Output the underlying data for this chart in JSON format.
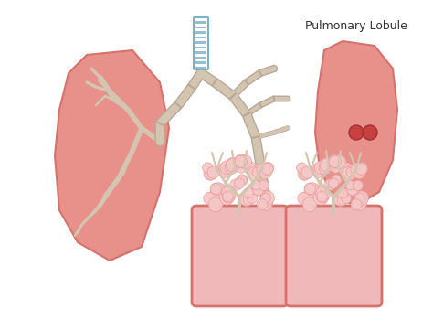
{
  "title": "Pulmonary Lobule",
  "bg_color": "#ffffff",
  "lung_color": "#e8908a",
  "lung_dark": "#d4736d",
  "bronchi_color": "#d4c5b0",
  "bronchi_outline": "#b8a898",
  "trachea_blue": "#7ab0c8",
  "trachea_white": "#ffffff",
  "alveoli_bg": "#f0b8b8",
  "alveoli_cluster": "#f5c8c8",
  "alveoli_dot": "#e89898",
  "text_color": "#333333"
}
